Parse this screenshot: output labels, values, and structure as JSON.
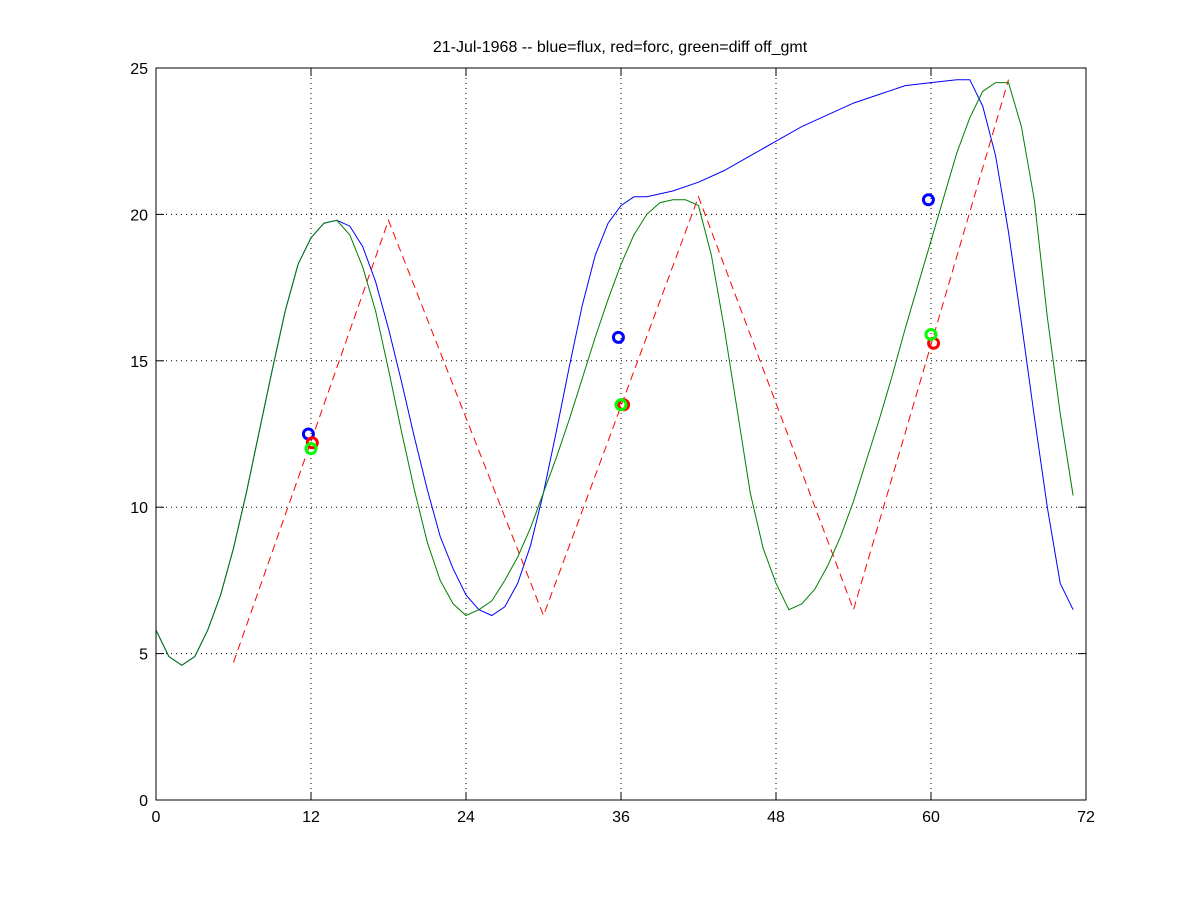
{
  "chart_data": {
    "type": "line",
    "title": "21-Jul-1968 -- blue=flux, red=forc, green=diff off_gmt",
    "xlabel": "",
    "ylabel": "",
    "xlim": [
      0,
      72
    ],
    "ylim": [
      0,
      25
    ],
    "xticks": [
      0,
      12,
      24,
      36,
      48,
      60,
      72
    ],
    "yticks": [
      0,
      5,
      10,
      15,
      20,
      25
    ],
    "grid": true,
    "series": [
      {
        "color": "#0000ff",
        "style": "solid",
        "points": [
          [
            0,
            5.8
          ],
          [
            1,
            4.9
          ],
          [
            2,
            4.6
          ],
          [
            3,
            4.9
          ],
          [
            4,
            5.8
          ],
          [
            5,
            7.0
          ],
          [
            6,
            8.6
          ],
          [
            7,
            10.5
          ],
          [
            8,
            12.6
          ],
          [
            9,
            14.7
          ],
          [
            10,
            16.7
          ],
          [
            11,
            18.3
          ],
          [
            12,
            19.2
          ],
          [
            13,
            19.7
          ],
          [
            14,
            19.8
          ],
          [
            15,
            19.6
          ],
          [
            16,
            18.9
          ],
          [
            17,
            17.7
          ],
          [
            18,
            16.1
          ],
          [
            19,
            14.3
          ],
          [
            20,
            12.4
          ],
          [
            21,
            10.6
          ],
          [
            22,
            9.0
          ],
          [
            23,
            7.9
          ],
          [
            24,
            7.0
          ],
          [
            25,
            6.5
          ],
          [
            26,
            6.3
          ],
          [
            27,
            6.6
          ],
          [
            28,
            7.4
          ],
          [
            29,
            8.7
          ],
          [
            30,
            10.5
          ],
          [
            31,
            12.6
          ],
          [
            32,
            14.8
          ],
          [
            33,
            16.9
          ],
          [
            34,
            18.6
          ],
          [
            35,
            19.7
          ],
          [
            36,
            20.3
          ],
          [
            37,
            20.6
          ],
          [
            38,
            20.6
          ],
          [
            39,
            20.7
          ],
          [
            40,
            20.8
          ],
          [
            42,
            21.1
          ],
          [
            44,
            21.5
          ],
          [
            46,
            22.0
          ],
          [
            48,
            22.5
          ],
          [
            50,
            23.0
          ],
          [
            52,
            23.4
          ],
          [
            54,
            23.8
          ],
          [
            56,
            24.1
          ],
          [
            58,
            24.4
          ],
          [
            60,
            24.5
          ],
          [
            62,
            24.6
          ],
          [
            63,
            24.6
          ],
          [
            64,
            23.7
          ],
          [
            65,
            22.0
          ],
          [
            66,
            19.4
          ],
          [
            67,
            16.3
          ],
          [
            68,
            13.1
          ],
          [
            69,
            10.0
          ],
          [
            70,
            7.4
          ],
          [
            71,
            6.5
          ]
        ]
      },
      {
        "color": "#ff0000",
        "style": "dashed",
        "points": [
          [
            6,
            4.7
          ],
          [
            18,
            19.8
          ],
          [
            30,
            6.3
          ],
          [
            42,
            20.6
          ],
          [
            54,
            6.5
          ],
          [
            66,
            24.6
          ]
        ]
      },
      {
        "color": "#007f00",
        "style": "solid",
        "points": [
          [
            0,
            5.8
          ],
          [
            1,
            4.9
          ],
          [
            2,
            4.6
          ],
          [
            3,
            4.9
          ],
          [
            4,
            5.8
          ],
          [
            5,
            7.0
          ],
          [
            6,
            8.6
          ],
          [
            7,
            10.5
          ],
          [
            8,
            12.6
          ],
          [
            9,
            14.7
          ],
          [
            10,
            16.7
          ],
          [
            11,
            18.3
          ],
          [
            12,
            19.2
          ],
          [
            13,
            19.7
          ],
          [
            14,
            19.8
          ],
          [
            15,
            19.3
          ],
          [
            16,
            18.2
          ],
          [
            17,
            16.7
          ],
          [
            18,
            14.7
          ],
          [
            19,
            12.6
          ],
          [
            20,
            10.6
          ],
          [
            21,
            8.8
          ],
          [
            22,
            7.5
          ],
          [
            23,
            6.7
          ],
          [
            24,
            6.3
          ],
          [
            25,
            6.5
          ],
          [
            26,
            6.8
          ],
          [
            27,
            7.5
          ],
          [
            28,
            8.3
          ],
          [
            29,
            9.3
          ],
          [
            30,
            10.5
          ],
          [
            31,
            11.7
          ],
          [
            32,
            13.0
          ],
          [
            33,
            14.4
          ],
          [
            34,
            15.8
          ],
          [
            35,
            17.1
          ],
          [
            36,
            18.3
          ],
          [
            37,
            19.3
          ],
          [
            38,
            20.0
          ],
          [
            39,
            20.4
          ],
          [
            40,
            20.5
          ],
          [
            41,
            20.5
          ],
          [
            42,
            20.3
          ],
          [
            43,
            18.6
          ],
          [
            44,
            16.1
          ],
          [
            45,
            13.3
          ],
          [
            46,
            10.5
          ],
          [
            47,
            8.6
          ],
          [
            48,
            7.4
          ],
          [
            49,
            6.5
          ],
          [
            50,
            6.7
          ],
          [
            51,
            7.2
          ],
          [
            52,
            8.0
          ],
          [
            53,
            9.0
          ],
          [
            54,
            10.2
          ],
          [
            55,
            11.6
          ],
          [
            56,
            13.0
          ],
          [
            57,
            14.5
          ],
          [
            58,
            16.1
          ],
          [
            59,
            17.6
          ],
          [
            60,
            19.1
          ],
          [
            61,
            20.6
          ],
          [
            62,
            22.1
          ],
          [
            63,
            23.3
          ],
          [
            64,
            24.2
          ],
          [
            65,
            24.5
          ],
          [
            66,
            24.5
          ],
          [
            67,
            23.0
          ],
          [
            68,
            20.5
          ],
          [
            69,
            16.5
          ],
          [
            70,
            13.2
          ],
          [
            71,
            10.4
          ]
        ]
      }
    ],
    "markers": [
      {
        "x": 11.8,
        "y": 12.5,
        "color": "#0000ff"
      },
      {
        "x": 12.1,
        "y": 12.2,
        "color": "#ff0000"
      },
      {
        "x": 12.0,
        "y": 12.0,
        "color": "#00ff00"
      },
      {
        "x": 35.8,
        "y": 15.8,
        "color": "#0000ff"
      },
      {
        "x": 36.2,
        "y": 13.5,
        "color": "#ff0000"
      },
      {
        "x": 36.0,
        "y": 13.5,
        "color": "#00ff00"
      },
      {
        "x": 59.8,
        "y": 20.5,
        "color": "#0000ff"
      },
      {
        "x": 60.2,
        "y": 15.6,
        "color": "#ff0000"
      },
      {
        "x": 60.0,
        "y": 15.9,
        "color": "#00ff00"
      }
    ]
  }
}
